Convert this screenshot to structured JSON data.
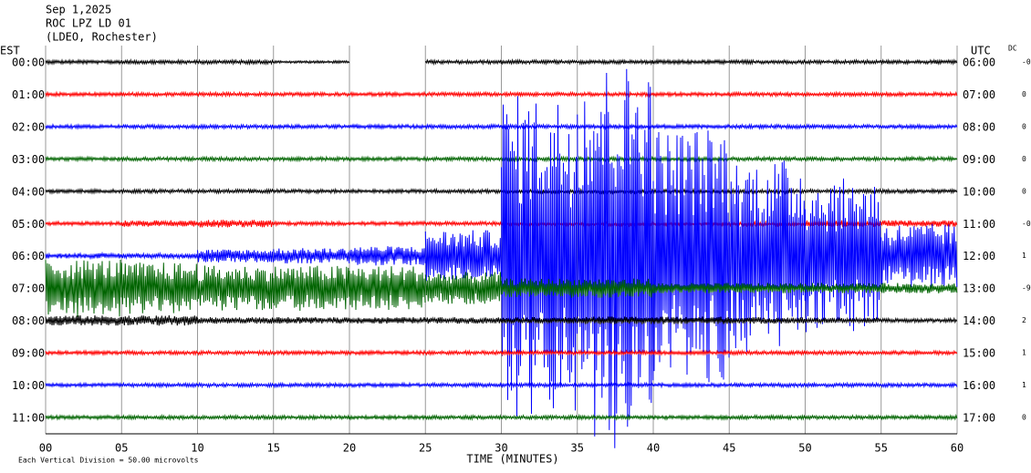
{
  "chart_data": {
    "type": "helicorder",
    "title_lines": [
      "Sep 1,2025",
      "ROC LPZ LD 01",
      "(LDEO, Rochester)"
    ],
    "left_axis_label": "EST",
    "right_axis_label": "UTC",
    "dc_label": "DC",
    "x_label": "TIME (MINUTES)",
    "vertical_division": {
      "value": 50,
      "label": "Each Vertical Division =   50.00 microvolts"
    },
    "xlim": [
      0,
      60
    ],
    "xticks": [
      {
        "value": 0,
        "label": "00"
      },
      {
        "value": 5,
        "label": "05"
      },
      10,
      15,
      20,
      25,
      30,
      35,
      40,
      45,
      50,
      55,
      60
    ],
    "segment_minutes": 5,
    "series": [
      {
        "name": "00:00",
        "utc": "06:00",
        "dc": "-0",
        "color": "#000000",
        "envelope": [
          3,
          3,
          3,
          2,
          null,
          3,
          3,
          3,
          3,
          3,
          3,
          3
        ]
      },
      {
        "name": "01:00",
        "utc": "07:00",
        "dc": "0",
        "color": "#ff0000",
        "envelope": [
          3,
          3,
          3,
          3,
          3,
          3,
          3,
          3,
          3,
          3,
          3,
          3
        ]
      },
      {
        "name": "02:00",
        "utc": "08:00",
        "dc": "0",
        "color": "#0000ff",
        "envelope": [
          3,
          3,
          3,
          3,
          3,
          3,
          3,
          3,
          3,
          3,
          3,
          3
        ]
      },
      {
        "name": "03:00",
        "utc": "09:00",
        "dc": "0",
        "color": "#006400",
        "envelope": [
          3,
          3,
          3,
          3,
          3,
          3,
          3,
          3,
          3,
          3,
          3,
          3
        ]
      },
      {
        "name": "04:00",
        "utc": "10:00",
        "dc": "0",
        "color": "#000000",
        "envelope": [
          3,
          3,
          3,
          3,
          3,
          3,
          3,
          3,
          3,
          3,
          3,
          3
        ]
      },
      {
        "name": "05:00",
        "utc": "11:00",
        "dc": "-0",
        "color": "#ff0000",
        "envelope": [
          3,
          5,
          6,
          3,
          3,
          3,
          3,
          3,
          3,
          3,
          5,
          5
        ]
      },
      {
        "name": "06:00",
        "utc": "12:00",
        "dc": "1",
        "color": "#0000ff",
        "envelope": [
          4,
          4,
          10,
          12,
          15,
          40,
          250,
          300,
          200,
          150,
          120,
          50
        ]
      },
      {
        "name": "07:00",
        "utc": "13:00",
        "dc": "-9",
        "color": "#006400",
        "envelope": [
          45,
          40,
          35,
          35,
          35,
          25,
          15,
          15,
          8,
          8,
          8,
          8
        ]
      },
      {
        "name": "08:00",
        "utc": "14:00",
        "dc": "2",
        "color": "#000000",
        "envelope": [
          8,
          8,
          5,
          5,
          5,
          5,
          5,
          6,
          6,
          5,
          4,
          3
        ]
      },
      {
        "name": "09:00",
        "utc": "15:00",
        "dc": "1",
        "color": "#ff0000",
        "envelope": [
          3,
          3,
          3,
          3,
          3,
          3,
          3,
          3,
          3,
          3,
          3,
          3
        ]
      },
      {
        "name": "10:00",
        "utc": "16:00",
        "dc": "1",
        "color": "#0000ff",
        "envelope": [
          3,
          3,
          3,
          3,
          3,
          3,
          3,
          3,
          3,
          3,
          3,
          3
        ]
      },
      {
        "name": "11:00",
        "utc": "17:00",
        "dc": "0",
        "color": "#006400",
        "envelope": [
          3,
          3,
          3,
          3,
          3,
          3,
          3,
          3,
          3,
          3,
          3,
          3
        ]
      }
    ]
  }
}
